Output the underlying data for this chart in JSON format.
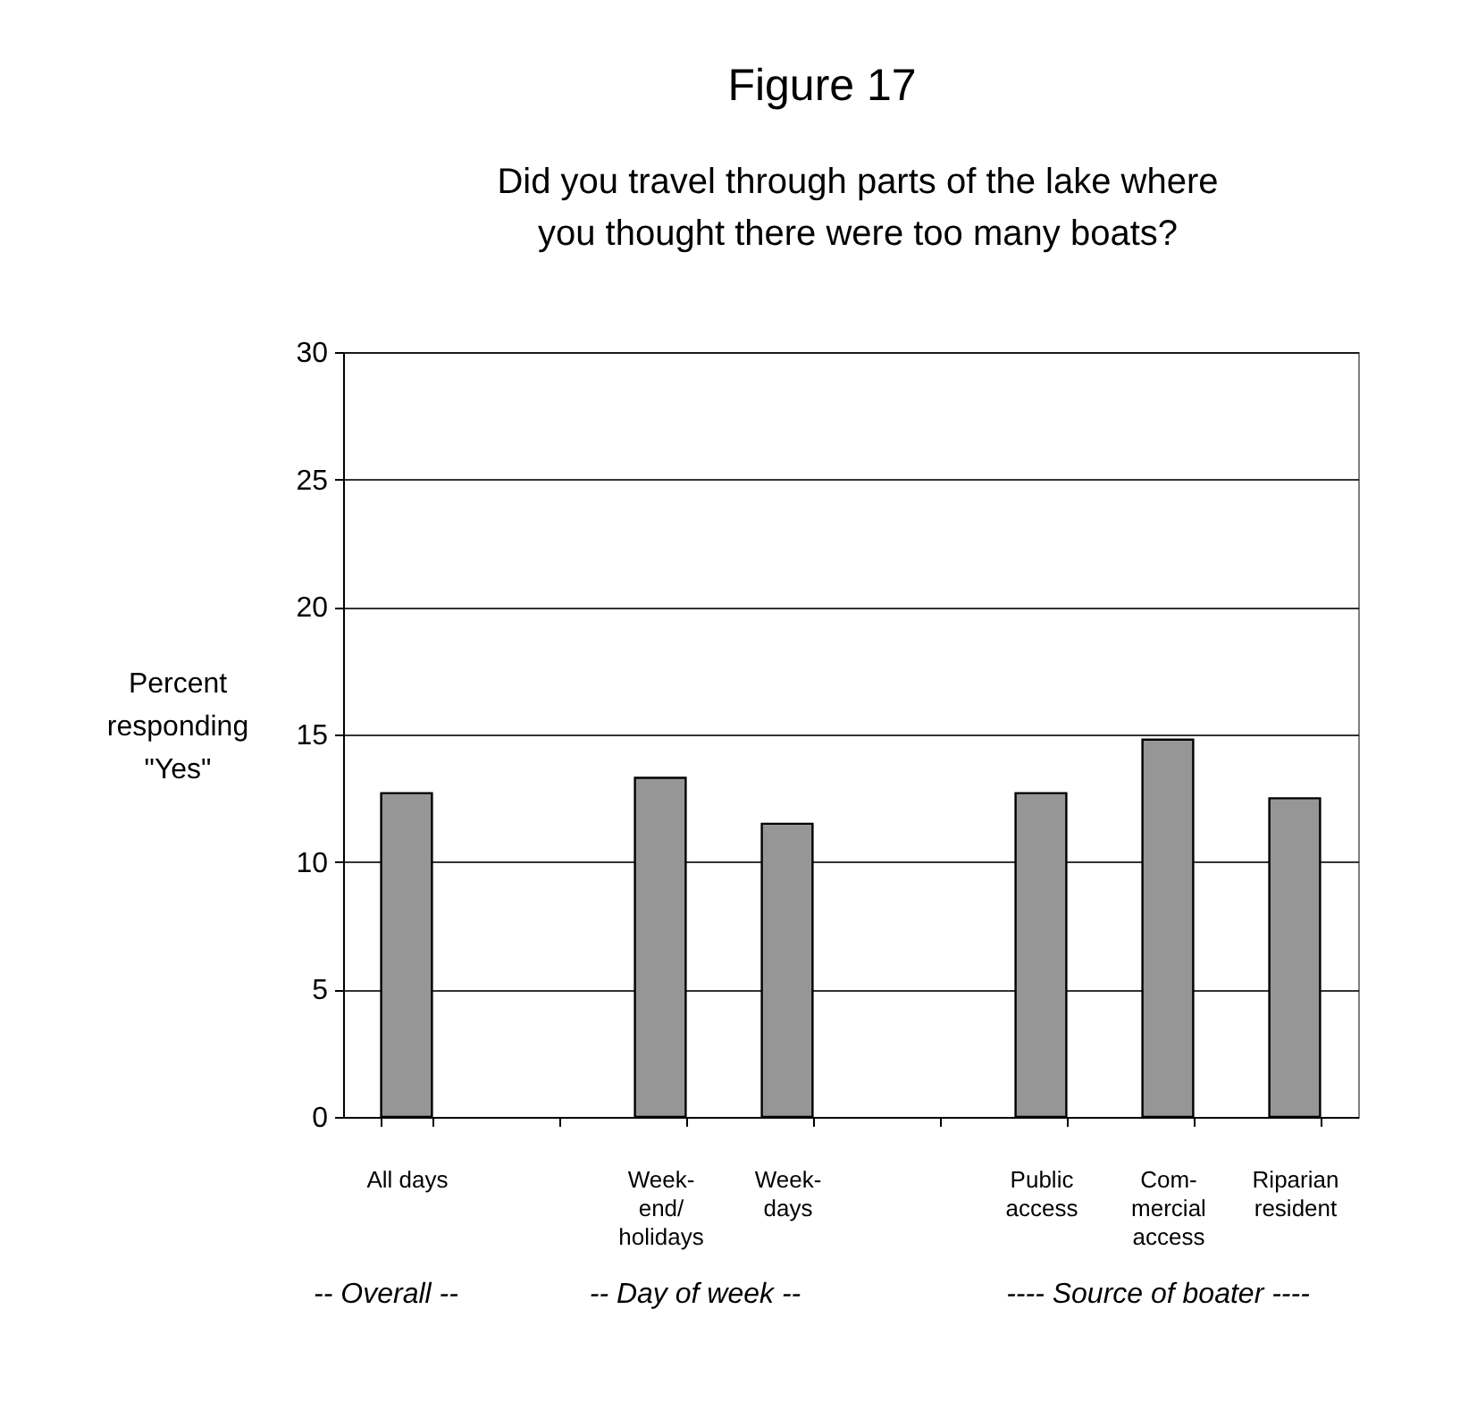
{
  "chart_data": {
    "type": "bar",
    "title": "Figure 17",
    "subtitle": "Did you travel through parts of the lake where you thought there were too many boats?",
    "ylabel": "Percent responding \"Yes\"",
    "categories": [
      "All days",
      null,
      "Week-\nend/\nholidays",
      "Week-\ndays",
      null,
      "Public\naccess",
      "Com-\nmercial\naccess",
      "Riparian\nresident"
    ],
    "values": [
      12.7,
      null,
      13.3,
      11.5,
      null,
      12.7,
      14.8,
      12.5
    ],
    "color": "#969696",
    "ylim": [
      0,
      30
    ],
    "yticks": [
      0,
      5,
      10,
      15,
      20,
      25,
      30
    ],
    "grid": "y",
    "annotations": [
      "-- Overall --",
      "-- Day of week --",
      "---- Source of boater ----"
    ]
  }
}
